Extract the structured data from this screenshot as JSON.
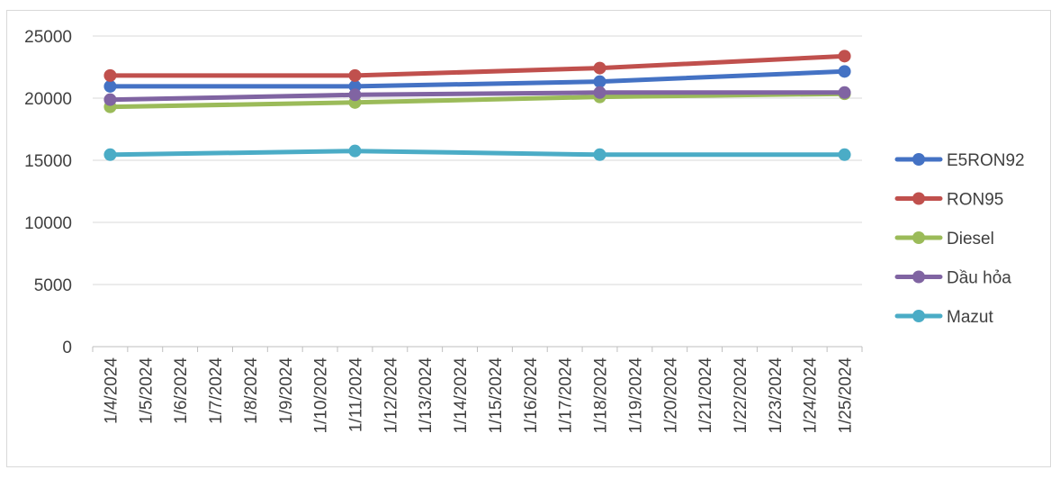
{
  "chart_data": {
    "type": "line",
    "title": "",
    "xlabel": "",
    "ylabel": "",
    "ylim": [
      0,
      25000
    ],
    "yticks": [
      0,
      5000,
      10000,
      15000,
      20000,
      25000
    ],
    "x_categories": [
      "1/4/2024",
      "1/5/2024",
      "1/6/2024",
      "1/7/2024",
      "1/8/2024",
      "1/9/2024",
      "1/10/2024",
      "1/11/2024",
      "1/12/2024",
      "1/13/2024",
      "1/14/2024",
      "1/15/2024",
      "1/16/2024",
      "1/17/2024",
      "1/18/2024",
      "1/19/2024",
      "1/20/2024",
      "1/21/2024",
      "1/22/2024",
      "1/23/2024",
      "1/24/2024",
      "1/25/2024"
    ],
    "grid": "horizontal",
    "legend_position": "right",
    "series": [
      {
        "name": "E5RON92",
        "color": "#4472c4",
        "points": [
          {
            "x": "1/4/2024",
            "y": 20950
          },
          {
            "x": "1/11/2024",
            "y": 20950
          },
          {
            "x": "1/18/2024",
            "y": 21330
          },
          {
            "x": "1/25/2024",
            "y": 22150
          }
        ]
      },
      {
        "name": "RON95",
        "color": "#c0504d",
        "points": [
          {
            "x": "1/4/2024",
            "y": 21820
          },
          {
            "x": "1/11/2024",
            "y": 21820
          },
          {
            "x": "1/18/2024",
            "y": 22420
          },
          {
            "x": "1/25/2024",
            "y": 23380
          }
        ]
      },
      {
        "name": "Diesel",
        "color": "#9bbb59",
        "points": [
          {
            "x": "1/4/2024",
            "y": 19300
          },
          {
            "x": "1/11/2024",
            "y": 19650
          },
          {
            "x": "1/18/2024",
            "y": 20100
          },
          {
            "x": "1/25/2024",
            "y": 20350
          }
        ]
      },
      {
        "name": "Dầu hỏa",
        "color": "#8064a2",
        "points": [
          {
            "x": "1/4/2024",
            "y": 19880
          },
          {
            "x": "1/11/2024",
            "y": 20270
          },
          {
            "x": "1/18/2024",
            "y": 20450
          },
          {
            "x": "1/25/2024",
            "y": 20450
          }
        ]
      },
      {
        "name": "Mazut",
        "color": "#4bacc6",
        "points": [
          {
            "x": "1/4/2024",
            "y": 15450
          },
          {
            "x": "1/11/2024",
            "y": 15750
          },
          {
            "x": "1/18/2024",
            "y": 15450
          },
          {
            "x": "1/25/2024",
            "y": 15450
          }
        ]
      }
    ]
  }
}
